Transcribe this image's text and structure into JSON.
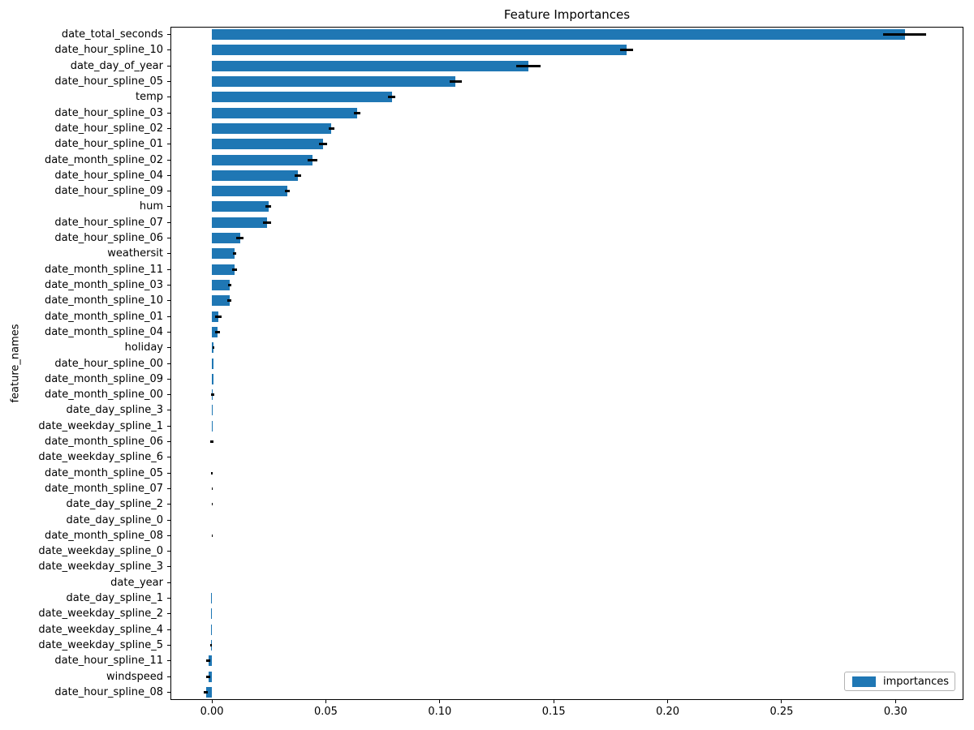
{
  "figure": {
    "title": "Feature Importances",
    "ylabel": "feature_names",
    "legend_label": "importances"
  },
  "chart_data": {
    "type": "bar",
    "orientation": "horizontal",
    "title": "Feature Importances",
    "xlabel": "",
    "ylabel": "feature_names",
    "legend": [
      "importances"
    ],
    "legend_position": "lower right",
    "grid": false,
    "bar_color": "#1f77b4",
    "error_color": "#000000",
    "xlim": [
      -0.0182,
      0.3298
    ],
    "xticks": [
      0.0,
      0.05,
      0.1,
      0.15,
      0.2,
      0.25,
      0.3
    ],
    "xtick_labels": [
      "0.00",
      "0.05",
      "0.10",
      "0.15",
      "0.20",
      "0.25",
      "0.30"
    ],
    "categories": [
      "date_total_seconds",
      "date_hour_spline_10",
      "date_day_of_year",
      "date_hour_spline_05",
      "temp",
      "date_hour_spline_03",
      "date_hour_spline_02",
      "date_hour_spline_01",
      "date_month_spline_02",
      "date_hour_spline_04",
      "date_hour_spline_09",
      "hum",
      "date_hour_spline_07",
      "date_hour_spline_06",
      "weathersit",
      "date_month_spline_11",
      "date_month_spline_03",
      "date_month_spline_10",
      "date_month_spline_01",
      "date_month_spline_04",
      "holiday",
      "date_hour_spline_00",
      "date_month_spline_09",
      "date_month_spline_00",
      "date_day_spline_3",
      "date_weekday_spline_1",
      "date_month_spline_06",
      "date_weekday_spline_6",
      "date_month_spline_05",
      "date_month_spline_07",
      "date_day_spline_2",
      "date_day_spline_0",
      "date_month_spline_08",
      "date_weekday_spline_0",
      "date_weekday_spline_3",
      "date_year",
      "date_day_spline_1",
      "date_weekday_spline_2",
      "date_weekday_spline_4",
      "date_weekday_spline_5",
      "date_hour_spline_11",
      "windspeed",
      "date_hour_spline_08"
    ],
    "series": [
      {
        "name": "importances",
        "values": [
          0.304,
          0.182,
          0.139,
          0.107,
          0.079,
          0.0638,
          0.0525,
          0.0487,
          0.0442,
          0.0377,
          0.0331,
          0.0248,
          0.0242,
          0.0124,
          0.01,
          0.0099,
          0.0079,
          0.0077,
          0.0029,
          0.0024,
          0.0008,
          0.0008,
          0.0007,
          0.0003,
          0.0004,
          0.0004,
          5e-05,
          0.0,
          5e-05,
          3e-05,
          3e-05,
          0.0,
          3e-05,
          0.0,
          0.0,
          0.0,
          -0.0004,
          -0.0004,
          -0.0004,
          -0.0005,
          -0.0016,
          -0.0016,
          -0.0027
        ],
        "errors": [
          0.0095,
          0.003,
          0.0053,
          0.0027,
          0.0016,
          0.0015,
          0.0011,
          0.0018,
          0.0021,
          0.0013,
          0.0011,
          0.0013,
          0.0017,
          0.0016,
          0.0007,
          0.001,
          0.0007,
          0.0008,
          0.0015,
          0.001,
          0.0004,
          0.0,
          0.0,
          0.0008,
          0.0,
          0.0,
          0.0007,
          0.0,
          0.0003,
          0.0002,
          0.0002,
          0.0,
          0.0002,
          0.0,
          0.0,
          0.0,
          0.0,
          0.0,
          0.0,
          0.0003,
          0.0009,
          0.0009,
          0.0009
        ]
      }
    ]
  }
}
